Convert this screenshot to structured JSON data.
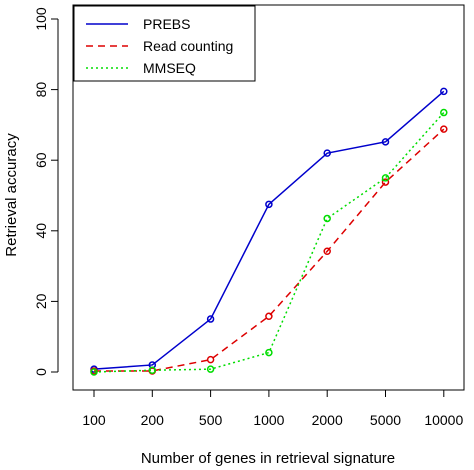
{
  "chart_data": {
    "type": "line",
    "categories": [
      "100",
      "200",
      "500",
      "1000",
      "2000",
      "5000",
      "10000"
    ],
    "series": [
      {
        "name": "PREBS",
        "values": [
          0.8,
          2.0,
          15.0,
          47.5,
          62.0,
          65.2,
          79.5
        ],
        "color": "#0000cc",
        "dash": "solid"
      },
      {
        "name": "Read counting",
        "values": [
          0.3,
          0.3,
          3.5,
          15.8,
          34.2,
          53.8,
          68.8
        ],
        "color": "#dd0000",
        "dash": "dashed"
      },
      {
        "name": "MMSEQ",
        "values": [
          0.0,
          0.5,
          0.8,
          5.5,
          43.5,
          55.0,
          73.5
        ],
        "color": "#00dd00",
        "dash": "dotted"
      }
    ],
    "xlabel": "Number of genes in retrieval signature",
    "ylabel": "Retrieval accuracy",
    "ylim": [
      0,
      100
    ],
    "yticks": [
      "0",
      "20",
      "40",
      "60",
      "80",
      "100"
    ],
    "legend_position": "top-left",
    "grid": false
  }
}
